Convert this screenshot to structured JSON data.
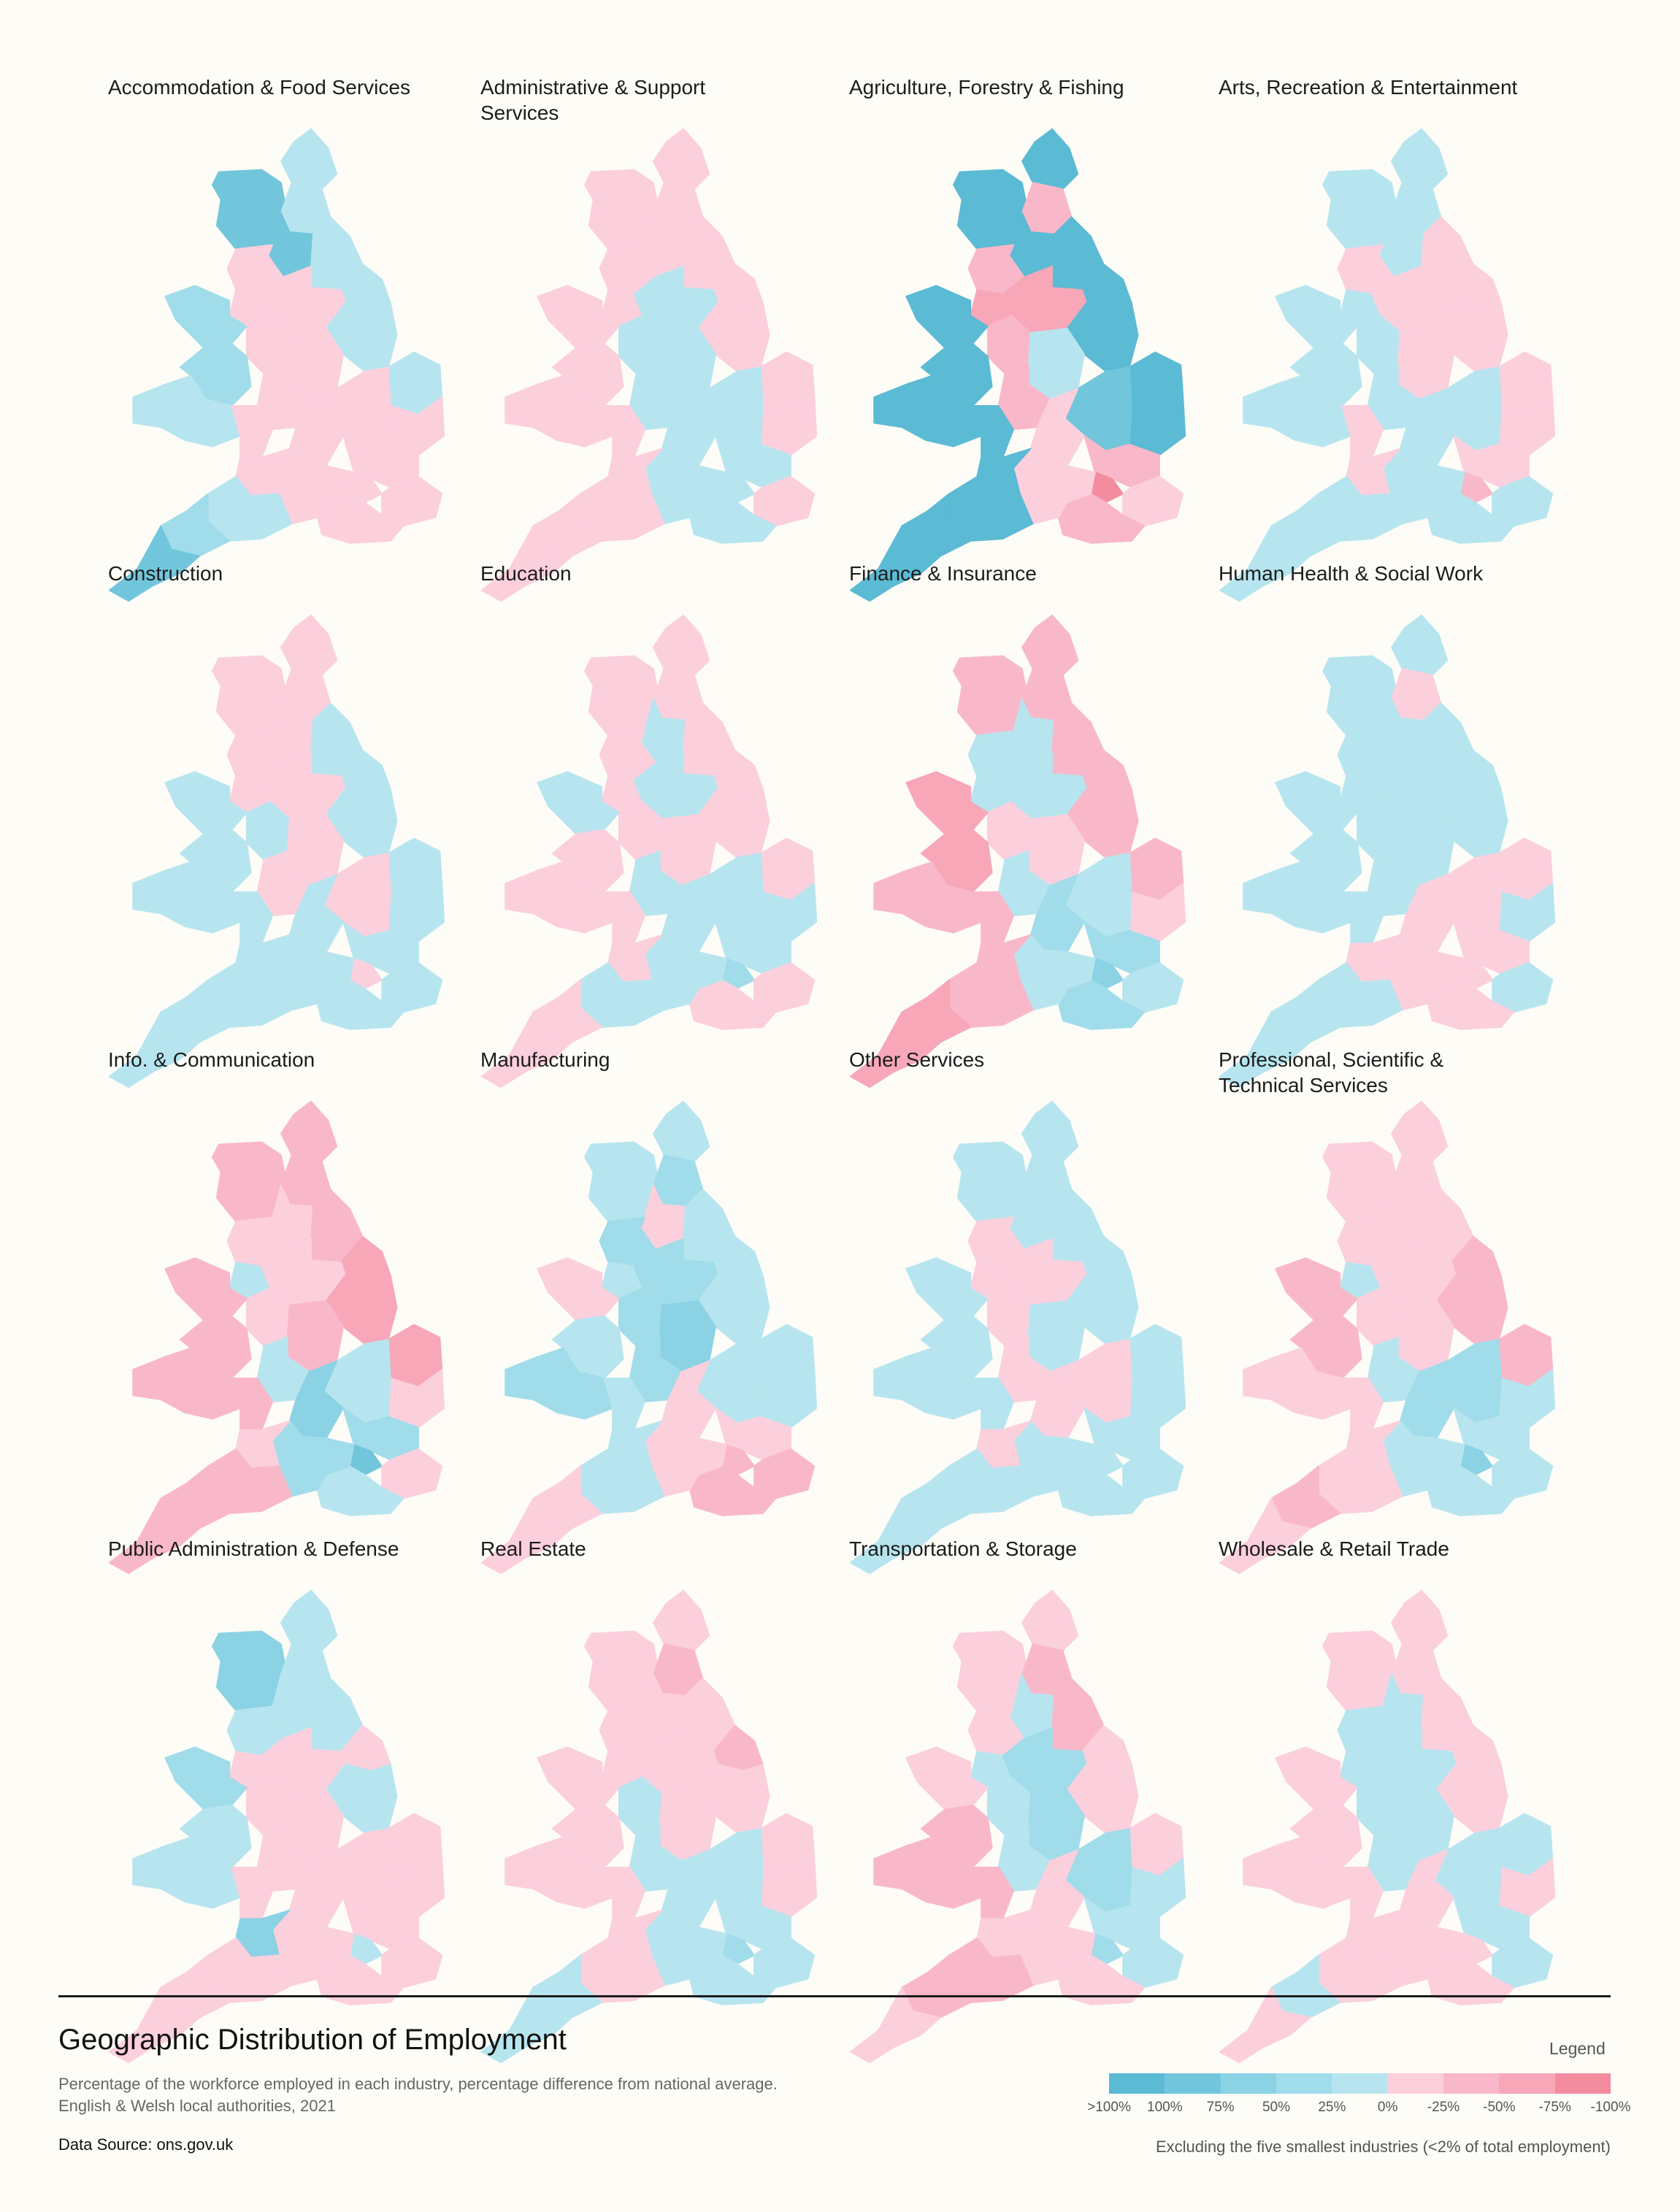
{
  "title": "Geographic Distribution of Employment",
  "subtitle_line1": "Percentage of the workforce employed in each industry, percentage difference from national average.",
  "subtitle_line2": "English & Welsh local authorities, 2021",
  "source": "Data Source: ons.gov.uk",
  "note": "Excluding the five smallest industries (<2% of total employment)",
  "legend": {
    "title": "Legend",
    "colors": [
      "#5bbad4",
      "#72c6dc",
      "#8ad2e4",
      "#a1dcea",
      "#b7e5ef",
      "#fccfdd",
      "#f9b8c9",
      "#f7a7b8",
      "#f48c9f"
    ],
    "ticks": [
      ">100%",
      "100%",
      "75%",
      "50%",
      "25%",
      "0%",
      "-25%",
      "-50%",
      "-75%",
      "-100%"
    ]
  },
  "color_scale": {
    "-3": "#f48c9f",
    "-2": "#f7a7b8",
    "-1": "#f9b8c9",
    "0": "#fccfdd",
    "1": "#b7e5ef",
    "2": "#a1dcea",
    "3": "#8ad2e4",
    "4": "#72c6dc",
    "5": "#5bbad4"
  },
  "regions": [
    "Northumberland",
    "Cumbria",
    "North East",
    "Yorkshire Dales",
    "North Yorkshire",
    "East Yorkshire",
    "Lancashire",
    "Manchester / Merseyside",
    "West & South Yorkshire",
    "Lincolnshire",
    "Cheshire & Staffordshire",
    "East Midlands",
    "North Wales",
    "Mid Wales",
    "South Wales",
    "West Midlands",
    "Herefordshire & Shropshire",
    "Norfolk",
    "Suffolk",
    "Cambridgeshire & Bedfordshire",
    "Oxfordshire & Bucks",
    "Essex & Herts",
    "London",
    "Kent",
    "Sussex & Surrey",
    "Hampshire & Berkshire",
    "Gloucestershire & Wiltshire",
    "Somerset & Dorset",
    "Devon",
    "Cornwall"
  ],
  "industries": [
    {
      "name": "Accommodation & Food Services",
      "levels": [
        1,
        4,
        1,
        4,
        1,
        1,
        0,
        0,
        0,
        1,
        0,
        0,
        2,
        2,
        1,
        0,
        0,
        1,
        0,
        0,
        0,
        0,
        0,
        0,
        0,
        0,
        0,
        1,
        2,
        4
      ]
    },
    {
      "name": "Administrative & Support Services",
      "levels": [
        0,
        0,
        0,
        0,
        0,
        0,
        0,
        0,
        1,
        0,
        1,
        1,
        0,
        0,
        0,
        1,
        0,
        0,
        0,
        1,
        1,
        1,
        1,
        0,
        1,
        1,
        0,
        0,
        0,
        0
      ]
    },
    {
      "name": "Agriculture, Forestry & Fishing",
      "levels": [
        5,
        5,
        -1,
        5,
        5,
        5,
        -1,
        -2,
        -2,
        5,
        -1,
        1,
        5,
        5,
        5,
        -1,
        5,
        5,
        5,
        4,
        0,
        -1,
        -3,
        0,
        -1,
        0,
        5,
        5,
        5,
        5
      ]
    },
    {
      "name": "Arts, Recreation & Entertainment",
      "levels": [
        1,
        1,
        1,
        1,
        0,
        0,
        0,
        1,
        0,
        0,
        1,
        0,
        1,
        1,
        1,
        1,
        0,
        0,
        0,
        1,
        1,
        0,
        -1,
        1,
        1,
        1,
        0,
        1,
        1,
        1
      ]
    },
    {
      "name": "Construction",
      "levels": [
        0,
        0,
        0,
        0,
        1,
        1,
        0,
        0,
        0,
        1,
        1,
        0,
        1,
        1,
        1,
        0,
        1,
        1,
        1,
        0,
        1,
        1,
        0,
        1,
        1,
        1,
        1,
        1,
        1,
        1
      ]
    },
    {
      "name": "Education",
      "levels": [
        0,
        0,
        0,
        1,
        0,
        0,
        0,
        0,
        1,
        0,
        0,
        0,
        1,
        0,
        0,
        1,
        0,
        0,
        1,
        1,
        1,
        1,
        2,
        0,
        0,
        1,
        0,
        1,
        0,
        0
      ]
    },
    {
      "name": "Finance & Insurance",
      "levels": [
        -1,
        -1,
        -1,
        1,
        -1,
        -1,
        1,
        1,
        1,
        -1,
        0,
        0,
        -2,
        -2,
        -1,
        1,
        -1,
        -1,
        0,
        1,
        2,
        2,
        3,
        1,
        2,
        1,
        -1,
        -1,
        -2,
        -2
      ]
    },
    {
      "name": "Human Health & Social Work",
      "levels": [
        1,
        1,
        0,
        1,
        1,
        1,
        1,
        1,
        1,
        1,
        1,
        1,
        1,
        1,
        1,
        1,
        1,
        0,
        1,
        0,
        0,
        0,
        0,
        1,
        0,
        0,
        0,
        1,
        1,
        1
      ]
    },
    {
      "name": "Info. & Communication",
      "levels": [
        -1,
        -1,
        -1,
        0,
        -1,
        -2,
        0,
        1,
        0,
        -2,
        0,
        -1,
        -1,
        -1,
        -1,
        1,
        -1,
        -2,
        0,
        1,
        3,
        2,
        4,
        0,
        1,
        2,
        0,
        -1,
        -1,
        -1
      ]
    },
    {
      "name": "Manufacturing",
      "levels": [
        1,
        1,
        2,
        0,
        1,
        1,
        2,
        1,
        2,
        1,
        2,
        3,
        0,
        1,
        2,
        2,
        1,
        1,
        1,
        1,
        0,
        0,
        -1,
        -1,
        -1,
        0,
        1,
        1,
        0,
        0
      ]
    },
    {
      "name": "Other Services",
      "levels": [
        1,
        1,
        1,
        1,
        1,
        1,
        0,
        0,
        0,
        1,
        0,
        1,
        1,
        1,
        1,
        0,
        1,
        1,
        1,
        0,
        0,
        1,
        1,
        1,
        1,
        1,
        0,
        1,
        1,
        1
      ]
    },
    {
      "name": "Professional, Scientific & Technical Services",
      "levels": [
        0,
        0,
        0,
        0,
        0,
        -1,
        0,
        1,
        0,
        -1,
        0,
        0,
        -1,
        -1,
        0,
        1,
        0,
        -1,
        1,
        2,
        2,
        1,
        3,
        1,
        1,
        1,
        0,
        0,
        -1,
        0
      ]
    },
    {
      "name": "Public Administration & Defense",
      "levels": [
        1,
        3,
        1,
        1,
        1,
        0,
        1,
        0,
        0,
        1,
        0,
        0,
        2,
        1,
        1,
        0,
        0,
        0,
        0,
        0,
        0,
        0,
        1,
        0,
        0,
        0,
        3,
        0,
        0,
        0
      ]
    },
    {
      "name": "Real Estate",
      "levels": [
        0,
        0,
        -1,
        0,
        0,
        -1,
        0,
        0,
        0,
        0,
        1,
        0,
        0,
        0,
        0,
        1,
        0,
        0,
        0,
        1,
        1,
        1,
        2,
        1,
        1,
        1,
        0,
        0,
        1,
        1
      ]
    },
    {
      "name": "Transportation & Storage",
      "levels": [
        0,
        0,
        -1,
        1,
        -1,
        0,
        0,
        1,
        2,
        0,
        1,
        2,
        0,
        -1,
        -1,
        1,
        -1,
        0,
        1,
        2,
        0,
        1,
        2,
        1,
        0,
        0,
        0,
        -1,
        -1,
        0
      ]
    },
    {
      "name": "Wholesale & Retail Trade",
      "levels": [
        0,
        0,
        0,
        1,
        0,
        0,
        1,
        1,
        1,
        0,
        1,
        1,
        0,
        0,
        0,
        1,
        0,
        1,
        0,
        1,
        0,
        1,
        0,
        1,
        0,
        0,
        0,
        0,
        1,
        0
      ]
    }
  ]
}
